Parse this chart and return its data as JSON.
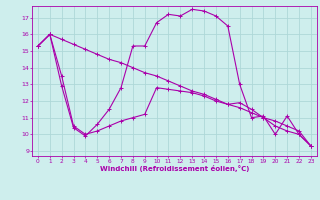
{
  "xlabel": "Windchill (Refroidissement éolien,°C)",
  "bg_color": "#ceeeed",
  "grid_color": "#aed8d8",
  "line_color": "#aa00aa",
  "xlim": [
    -0.5,
    23.5
  ],
  "ylim": [
    8.7,
    17.7
  ],
  "yticks": [
    9,
    10,
    11,
    12,
    13,
    14,
    15,
    16,
    17
  ],
  "xticks": [
    0,
    1,
    2,
    3,
    4,
    5,
    6,
    7,
    8,
    9,
    10,
    11,
    12,
    13,
    14,
    15,
    16,
    17,
    18,
    19,
    20,
    21,
    22,
    23
  ],
  "series1_x": [
    0,
    1,
    2,
    3,
    4,
    5,
    6,
    7,
    8,
    9,
    10,
    11,
    12,
    13,
    14,
    15,
    16,
    17,
    18,
    19,
    20,
    21,
    22,
    23
  ],
  "series1_y": [
    15.3,
    16.0,
    15.7,
    15.4,
    15.1,
    14.8,
    14.5,
    14.3,
    14.0,
    13.7,
    13.5,
    13.2,
    12.9,
    12.6,
    12.4,
    12.1,
    11.8,
    11.6,
    11.3,
    11.0,
    10.8,
    10.5,
    10.2,
    9.3
  ],
  "series2_x": [
    0,
    1,
    2,
    3,
    4,
    5,
    6,
    7,
    8,
    9,
    10,
    11,
    12,
    13,
    14,
    15,
    16,
    17,
    18,
    19,
    20,
    21,
    22,
    23
  ],
  "series2_y": [
    15.3,
    16.0,
    12.9,
    10.4,
    9.9,
    10.6,
    11.5,
    12.8,
    15.3,
    15.3,
    16.7,
    17.2,
    17.1,
    17.5,
    17.4,
    17.1,
    16.5,
    13.0,
    11.0,
    11.1,
    10.0,
    11.1,
    10.0,
    9.3
  ],
  "series3_x": [
    0,
    1,
    2,
    3,
    4,
    5,
    6,
    7,
    8,
    9,
    10,
    11,
    12,
    13,
    14,
    15,
    16,
    17,
    18,
    19,
    20,
    21,
    22,
    23
  ],
  "series3_y": [
    15.3,
    16.0,
    13.5,
    10.5,
    10.0,
    10.2,
    10.5,
    10.8,
    11.0,
    11.2,
    12.8,
    12.7,
    12.6,
    12.5,
    12.3,
    12.0,
    11.8,
    11.9,
    11.5,
    11.0,
    10.5,
    10.2,
    10.0,
    9.3
  ]
}
